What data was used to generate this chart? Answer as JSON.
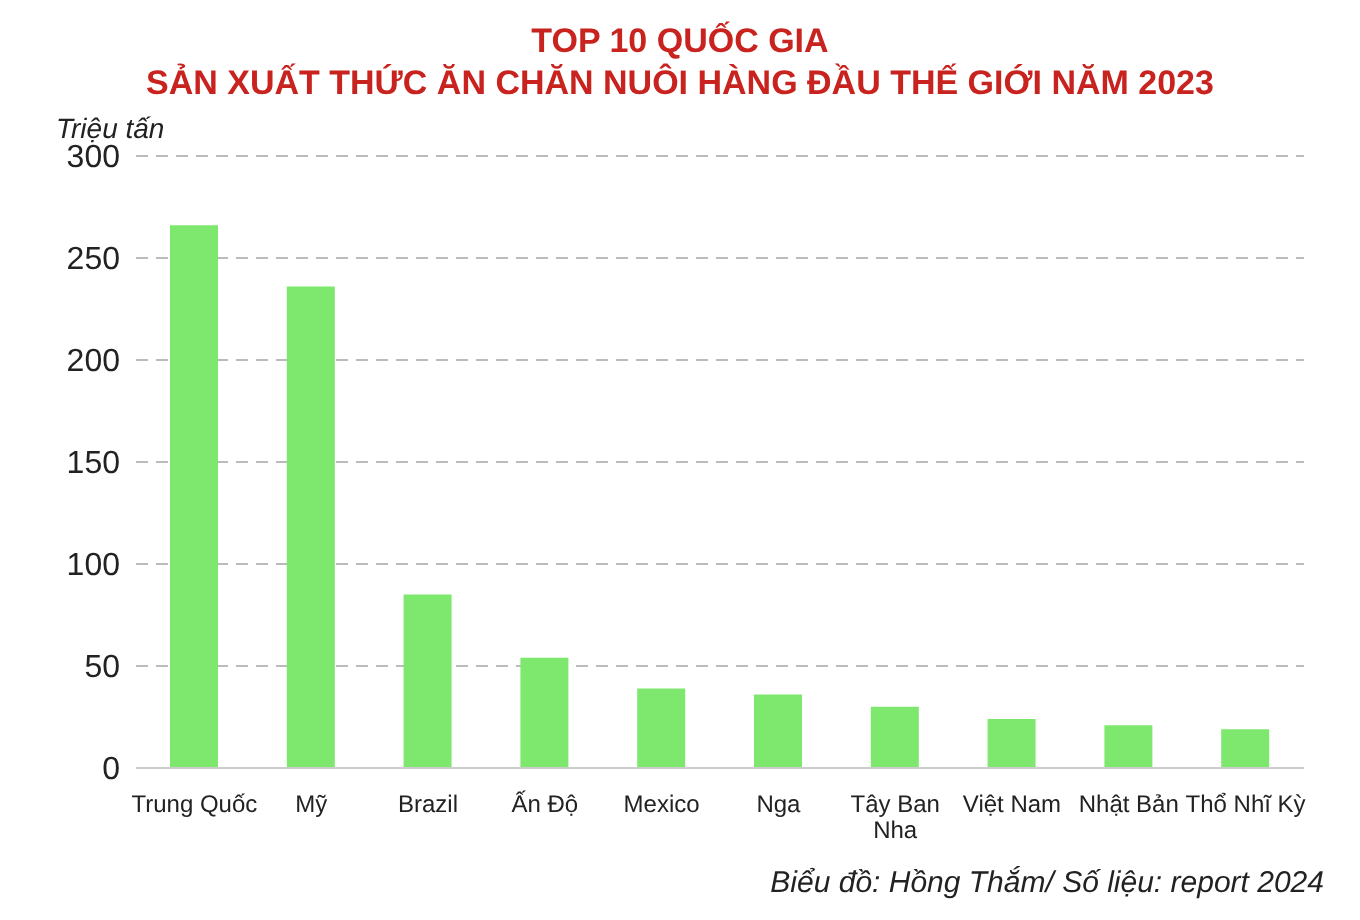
{
  "chart_data": {
    "type": "bar",
    "title": "TOP 10 QUỐC GIA",
    "subtitle": "SẢN XUẤT THỨC ĂN CHĂN NUÔI HÀNG ĐẦU THẾ GIỚI NĂM 2023",
    "ylabel": "Triệu tấn",
    "categories": [
      "Trung Quốc",
      "Mỹ",
      "Brazil",
      "Ấn Độ",
      "Mexico",
      "Nga",
      "Tây Ban Nha",
      "Việt Nam",
      "Nhật Bản",
      "Thổ Nhĩ Kỳ"
    ],
    "values": [
      266,
      236,
      85,
      54,
      39,
      36,
      30,
      24,
      21,
      19
    ],
    "color": "#7ee86e",
    "ylim": [
      0,
      300
    ],
    "yticks": [
      0,
      50,
      100,
      150,
      200,
      250,
      300
    ],
    "grid": "y",
    "annotations": [
      "Biểu đồ: Hồng Thắm/ Số liệu: report 2024"
    ]
  }
}
